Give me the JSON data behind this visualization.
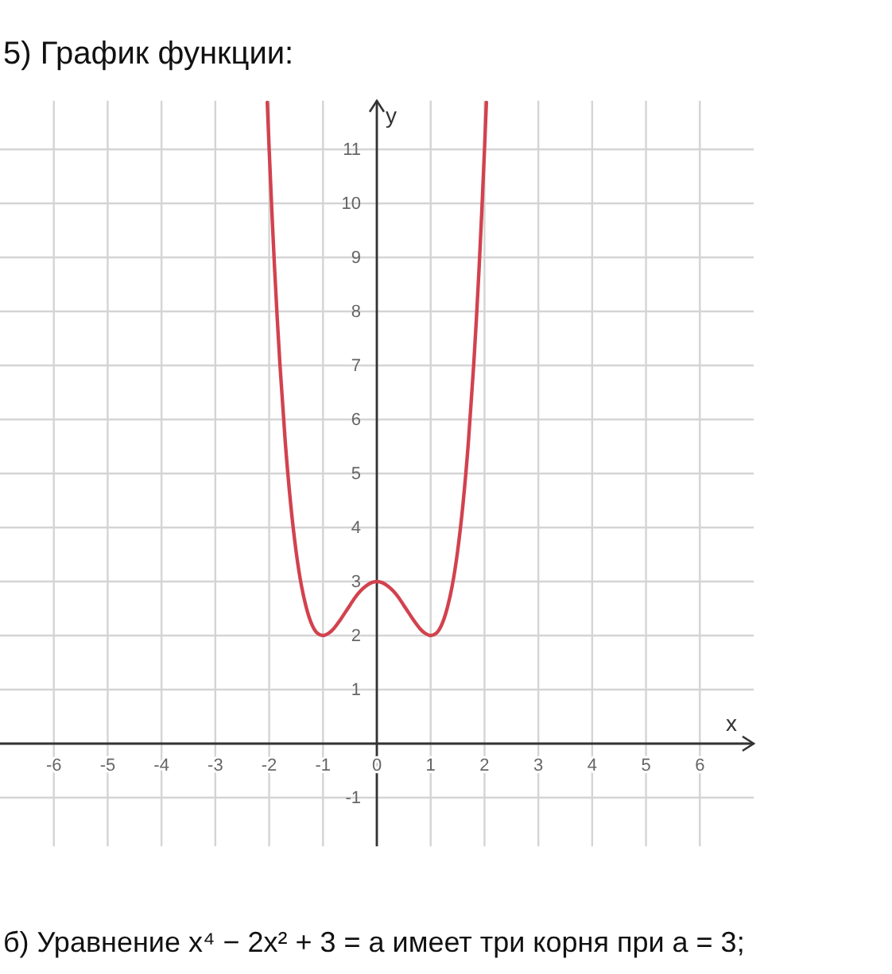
{
  "chart_data": {
    "type": "line",
    "title": "5) График функции:",
    "xlabel": "x",
    "ylabel": "y",
    "x": [
      -2.035,
      -2.0,
      -1.95,
      -1.9,
      -1.85,
      -1.8,
      -1.7,
      -1.6,
      -1.5,
      -1.4,
      -1.3,
      -1.2,
      -1.1,
      -1.0,
      -0.9,
      -0.8,
      -0.7,
      -0.6,
      -0.5,
      -0.4,
      -0.3,
      -0.2,
      -0.1,
      0,
      0.1,
      0.2,
      0.3,
      0.4,
      0.5,
      0.6,
      0.7,
      0.8,
      0.9,
      1.0,
      1.1,
      1.2,
      1.3,
      1.4,
      1.5,
      1.6,
      1.7,
      1.8,
      1.85,
      1.9,
      1.95,
      2.0,
      2.035
    ],
    "series": [
      {
        "color": "#d2424e",
        "values": [
          11.87,
          11,
          9.85,
          8.81,
          7.87,
          7.02,
          5.57,
          4.43,
          3.56,
          2.92,
          2.48,
          2.19,
          2.04,
          2,
          2.04,
          2.13,
          2.26,
          2.41,
          2.56,
          2.71,
          2.83,
          2.92,
          2.98,
          3,
          2.98,
          2.92,
          2.83,
          2.71,
          2.56,
          2.41,
          2.26,
          2.13,
          2.04,
          2,
          2.04,
          2.19,
          2.48,
          2.92,
          3.56,
          4.43,
          5.57,
          7.02,
          7.87,
          8.81,
          9.85,
          11,
          11.87
        ]
      }
    ],
    "xlim": [
      -7,
      7
    ],
    "ylim": [
      -1.9,
      11.9
    ],
    "xticks": [
      -6,
      -5,
      -4,
      -3,
      -2,
      -1,
      0,
      1,
      2,
      3,
      4,
      5,
      6
    ],
    "yticks": [
      -1,
      {
        "value": 0,
        "label": null
      },
      1,
      2,
      3,
      4,
      5,
      6,
      7,
      8,
      9,
      10,
      11
    ],
    "grid": true,
    "annotations": [
      "б) Уравнение x⁴ − 2x² + 3 = a имеет три корня при a = 3;"
    ]
  }
}
